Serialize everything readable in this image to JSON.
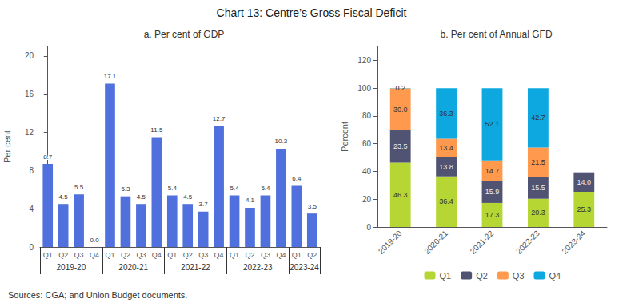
{
  "title": "Chart 13: Centre’s Gross Fiscal Deficit",
  "annotations": [
    "Sources: CGA; and Union Budget documents."
  ],
  "chart_data": [
    {
      "type": "bar",
      "title": "a. Per cent of GDP",
      "categories": [
        "Q1",
        "Q2",
        "Q3",
        "Q4",
        "Q1",
        "Q2",
        "Q3",
        "Q4",
        "Q1",
        "Q2",
        "Q3",
        "Q4",
        "Q1",
        "Q2",
        "Q3",
        "Q4",
        "Q1",
        "Q2"
      ],
      "group_labels": [
        "2019-20",
        "2020-21",
        "2021-22",
        "2022-23",
        "2023-24"
      ],
      "group_sizes": [
        4,
        4,
        4,
        4,
        2
      ],
      "values": [
        8.7,
        4.5,
        5.5,
        0.0,
        17.1,
        5.3,
        4.5,
        11.5,
        5.4,
        4.5,
        3.7,
        12.7,
        5.4,
        4.1,
        5.4,
        10.3,
        6.4,
        3.5
      ],
      "value_labels": [
        "8.7",
        "4.5",
        "5.5",
        "0.0",
        "17.1",
        "5.3",
        "4.5",
        "11.5",
        "5.4",
        "4.5",
        "3.7",
        "12.7",
        "5.4",
        "4.1",
        "5.4",
        "10.3",
        "6.4",
        "3.5"
      ],
      "ylabel": "Per cent",
      "ylim": [
        0,
        21
      ],
      "yticks": [
        0,
        4,
        8,
        12,
        16,
        20
      ],
      "data_labels": true,
      "grid": false
    },
    {
      "type": "bar",
      "title": "b. Per cent of Annual GFD",
      "categories": [
        "2019-20",
        "2020-21",
        "2021-22",
        "2022-23",
        "2023-24"
      ],
      "stacked": true,
      "series": [
        {
          "name": "Q1",
          "values": [
            46.3,
            36.4,
            17.3,
            20.3,
            25.3
          ],
          "value_labels": [
            "46.3",
            "36.4",
            "17.3",
            "20.3",
            "25.3"
          ]
        },
        {
          "name": "Q2",
          "values": [
            23.5,
            13.8,
            15.9,
            15.5,
            14.0
          ],
          "value_labels": [
            "23.5",
            "13.8",
            "15.9",
            "15.5",
            "14.0"
          ]
        },
        {
          "name": "Q3",
          "values": [
            30.0,
            13.4,
            14.7,
            21.5,
            0.0
          ],
          "value_labels": [
            "30.0",
            "13.4",
            "14.7",
            "21.5",
            null
          ]
        },
        {
          "name": "Q4",
          "values": [
            0.2,
            36.3,
            52.1,
            42.7,
            0.0
          ],
          "value_labels": [
            "0.2",
            "36.3",
            "52.1",
            "42.7",
            null
          ]
        }
      ],
      "ylabel": "Percent",
      "ylim": [
        0,
        130
      ],
      "yticks": [
        0,
        20,
        40,
        60,
        80,
        100,
        120
      ],
      "data_labels": true,
      "legend": "bottom",
      "grid": false
    }
  ]
}
